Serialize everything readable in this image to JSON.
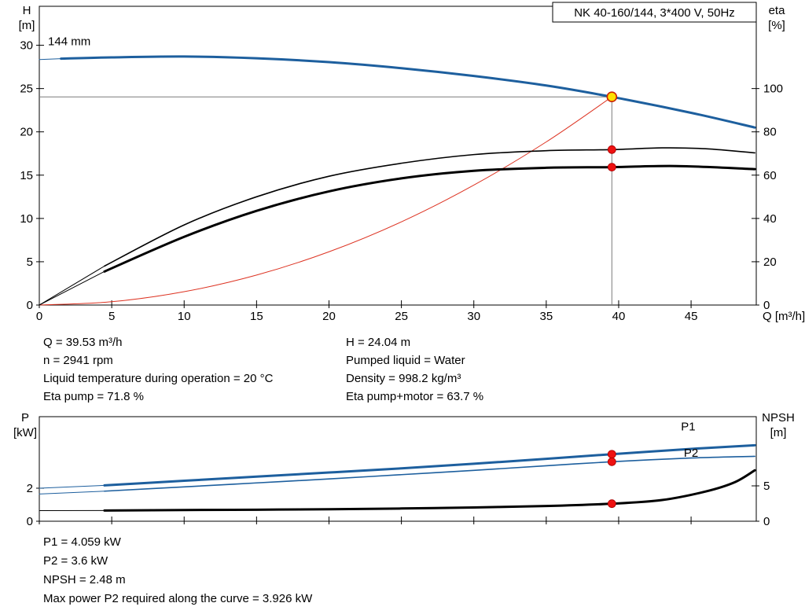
{
  "colors": {
    "blue": "#1d5f9e",
    "black": "#000000",
    "red": "#dd3322",
    "gray": "#7a7a7a",
    "marker_red": "#ee1111",
    "marker_red_stroke": "#aa0000",
    "duty_fill": "#ffe000",
    "duty_stroke": "#cc2200",
    "frame": "#000000"
  },
  "chart_data": [
    {
      "id": "hq",
      "type": "line",
      "title": "NK 40-160/144, 3*400 V, 50Hz",
      "axes": {
        "x": {
          "label": "Q [m³/h]",
          "min": 0,
          "max": 49.5,
          "ticks": [
            0,
            5,
            10,
            15,
            20,
            25,
            30,
            35,
            40,
            45
          ],
          "show_labels": true
        },
        "left": {
          "label": "H",
          "unit": "[m]",
          "min": 0,
          "max": 34.5,
          "ticks": [
            0,
            5,
            10,
            15,
            20,
            25,
            30
          ]
        },
        "right": {
          "label": "eta",
          "unit": "[%]",
          "min": 0,
          "max": 138,
          "ticks": [
            0,
            20,
            40,
            60,
            80,
            100
          ]
        }
      },
      "crosshair": {
        "q": 39.53,
        "v": 24.04,
        "axis": "left"
      },
      "series": [
        {
          "name": "system-curve",
          "axis": "left",
          "color": "red",
          "width": 1,
          "points": [
            [
              0,
              0
            ],
            [
              5,
              0.38
            ],
            [
              10,
              1.54
            ],
            [
              15,
              3.46
            ],
            [
              20,
              6.15
            ],
            [
              25,
              9.61
            ],
            [
              30,
              13.85
            ],
            [
              35,
              18.84
            ],
            [
              39.53,
              24.04
            ]
          ]
        },
        {
          "name": "pump-curve-144mm",
          "axis": "left",
          "color": "blue",
          "width": 3,
          "thin_until": 1.5,
          "label": {
            "text": "144 mm",
            "q": 0.6,
            "v": 30.0,
            "color": "black"
          },
          "points": [
            [
              0,
              28.35
            ],
            [
              1.5,
              28.45
            ],
            [
              5,
              28.6
            ],
            [
              10,
              28.7
            ],
            [
              15,
              28.5
            ],
            [
              20,
              28.05
            ],
            [
              25,
              27.35
            ],
            [
              30,
              26.45
            ],
            [
              35,
              25.35
            ],
            [
              39.53,
              24.04
            ],
            [
              45,
              22.2
            ],
            [
              49.4,
              20.5
            ]
          ]
        },
        {
          "name": "eta-pump",
          "axis": "right",
          "color": "black",
          "width": 1.6,
          "thin_until": 4.5,
          "points": [
            [
              0,
              0
            ],
            [
              4.5,
              18
            ],
            [
              10,
              37
            ],
            [
              15,
              50
            ],
            [
              20,
              59.5
            ],
            [
              25,
              65.5
            ],
            [
              30,
              69.5
            ],
            [
              35,
              71.3
            ],
            [
              39.53,
              71.8
            ],
            [
              43,
              72.6
            ],
            [
              46,
              72.2
            ],
            [
              49.4,
              70.3
            ]
          ]
        },
        {
          "name": "eta-pump-motor",
          "axis": "right",
          "color": "black",
          "width": 3,
          "thin_until": 4.5,
          "points": [
            [
              0,
              0
            ],
            [
              4.5,
              15.5
            ],
            [
              10,
              31.5
            ],
            [
              15,
              43.5
            ],
            [
              20,
              52.5
            ],
            [
              25,
              58.5
            ],
            [
              30,
              62
            ],
            [
              35,
              63.4
            ],
            [
              39.53,
              63.7
            ],
            [
              44,
              64.2
            ],
            [
              49.4,
              62.8
            ]
          ]
        }
      ],
      "markers": [
        {
          "q": 39.53,
          "v": 24.04,
          "axis": "left",
          "style": "duty",
          "name": "duty-point-marker"
        },
        {
          "q": 39.53,
          "v": 71.8,
          "axis": "right",
          "style": "dot",
          "name": "eta-pump-marker"
        },
        {
          "q": 39.53,
          "v": 63.7,
          "axis": "right",
          "style": "dot",
          "name": "eta-pump-motor-marker"
        }
      ]
    },
    {
      "id": "power-npsh",
      "type": "line",
      "title": "",
      "axes": {
        "x": {
          "label": "",
          "min": 0,
          "max": 49.5,
          "ticks": [
            0,
            5,
            10,
            15,
            20,
            25,
            30,
            35,
            40,
            45
          ],
          "show_labels": false
        },
        "left": {
          "label": "P",
          "unit": "[kW]",
          "min": 0,
          "max": 6.33,
          "ticks": [
            0,
            2
          ]
        },
        "right": {
          "label": "NPSH",
          "unit": "[m]",
          "min": 0,
          "max": 14.78,
          "ticks": [
            0,
            5
          ]
        }
      },
      "series": [
        {
          "name": "P1",
          "axis": "left",
          "color": "blue",
          "width": 3,
          "thin_until": 4.5,
          "label": {
            "text": "P1",
            "q": 44.3,
            "v": 5.5,
            "color": "blue"
          },
          "points": [
            [
              0,
              2.0
            ],
            [
              4.5,
              2.17
            ],
            [
              10,
              2.45
            ],
            [
              15,
              2.7
            ],
            [
              20,
              2.95
            ],
            [
              25,
              3.2
            ],
            [
              30,
              3.48
            ],
            [
              35,
              3.78
            ],
            [
              39.53,
              4.059
            ],
            [
              45,
              4.38
            ],
            [
              49.4,
              4.6
            ]
          ]
        },
        {
          "name": "P2",
          "axis": "left",
          "color": "blue",
          "width": 1.6,
          "thin_until": 4.5,
          "label": {
            "text": "P2",
            "q": 44.5,
            "v": 3.9,
            "color": "blue"
          },
          "points": [
            [
              0,
              1.65
            ],
            [
              4.5,
              1.82
            ],
            [
              10,
              2.08
            ],
            [
              15,
              2.32
            ],
            [
              20,
              2.56
            ],
            [
              25,
              2.82
            ],
            [
              30,
              3.08
            ],
            [
              35,
              3.36
            ],
            [
              39.53,
              3.6
            ],
            [
              45,
              3.83
            ],
            [
              49.4,
              3.93
            ]
          ]
        },
        {
          "name": "NPSH",
          "axis": "right",
          "color": "black",
          "width": 3,
          "thin_until": 4.5,
          "points": [
            [
              0,
              1.5
            ],
            [
              4.5,
              1.52
            ],
            [
              10,
              1.58
            ],
            [
              15,
              1.63
            ],
            [
              20,
              1.7
            ],
            [
              25,
              1.8
            ],
            [
              30,
              1.95
            ],
            [
              35,
              2.15
            ],
            [
              39.53,
              2.48
            ],
            [
              43,
              3.0
            ],
            [
              46,
              4.2
            ],
            [
              48,
              5.5
            ],
            [
              49.4,
              7.2
            ]
          ]
        }
      ],
      "markers": [
        {
          "q": 39.53,
          "v": 4.059,
          "axis": "left",
          "style": "dot",
          "name": "p1-marker"
        },
        {
          "q": 39.53,
          "v": 3.6,
          "axis": "left",
          "style": "dot",
          "name": "p2-marker"
        },
        {
          "q": 39.53,
          "v": 2.48,
          "axis": "right",
          "style": "dot",
          "name": "npsh-marker"
        }
      ]
    }
  ],
  "info_top": {
    "left": [
      "Q = 39.53 m³/h",
      "n = 2941 rpm",
      "Liquid temperature during operation = 20 °C",
      "Eta pump = 71.8 %"
    ],
    "right": [
      "H = 24.04 m",
      "Pumped liquid = Water",
      "Density = 998.2 kg/m³",
      "Eta pump+motor = 63.7 %"
    ]
  },
  "info_bottom": [
    "P1 = 4.059 kW",
    "P2 = 3.6 kW",
    "NPSH = 2.48 m",
    "Max power P2 required along the curve = 3.926 kW"
  ]
}
